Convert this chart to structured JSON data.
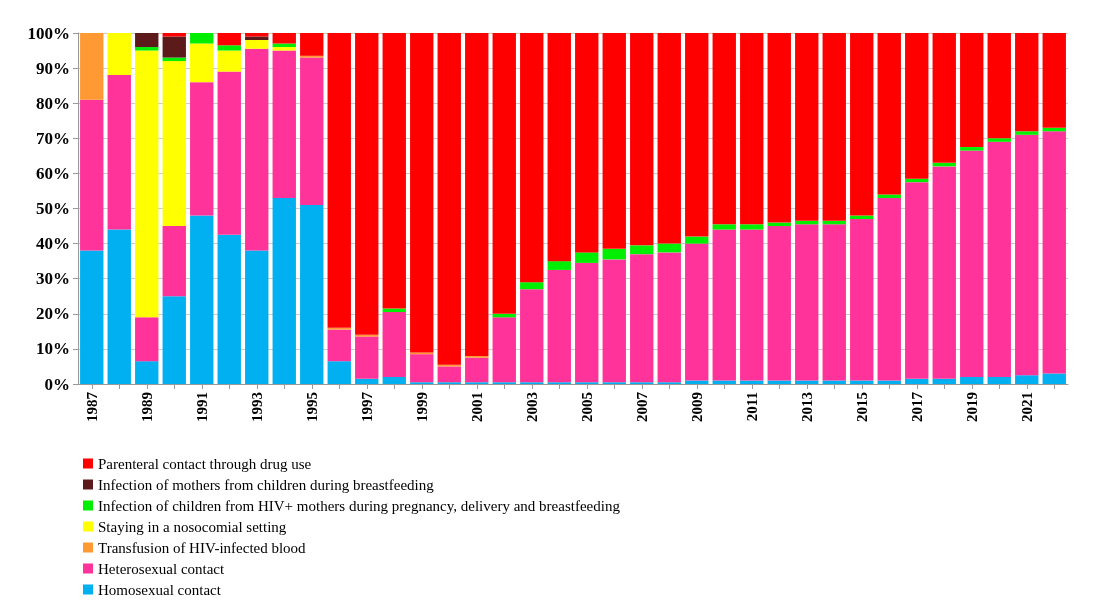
{
  "chart_data": {
    "type": "bar",
    "stacked": true,
    "categories": [
      "1987",
      null,
      "1989",
      null,
      "1991",
      null,
      "1993",
      null,
      "1995",
      null,
      "1997",
      null,
      "1999",
      null,
      "2001",
      null,
      "2003",
      null,
      "2005",
      null,
      "2007",
      null,
      "2009",
      null,
      "2011",
      null,
      "2013",
      null,
      "2015",
      null,
      "2017",
      null,
      "2019",
      null,
      "2021",
      null
    ],
    "series": [
      {
        "name": "Homosexual contact",
        "color": "#00b0f0",
        "values": [
          38,
          44,
          6.5,
          25,
          48,
          42.5,
          38,
          53,
          51,
          6.5,
          1.5,
          2,
          0.5,
          0.5,
          0.5,
          0.5,
          0.5,
          0.5,
          0.5,
          0.5,
          0.5,
          0.5,
          1,
          1,
          1,
          1,
          1,
          1,
          1,
          1,
          1.5,
          1.5,
          2,
          2,
          2.5,
          3
        ]
      },
      {
        "name": "Heterosexual contact",
        "color": "#ff3399",
        "values": [
          43,
          44,
          12.5,
          20,
          38,
          46.5,
          57.5,
          42,
          42,
          9,
          12,
          18.5,
          8,
          4.5,
          7,
          18.5,
          26.5,
          32,
          34,
          35,
          36.5,
          37,
          39,
          43,
          43,
          44,
          44.5,
          44.5,
          46,
          52,
          56,
          60.5,
          64.5,
          67,
          68.5,
          69
        ]
      },
      {
        "name": "Transfusion of HIV-infected blood",
        "color": "#ff9933",
        "values": [
          19,
          0,
          0,
          0,
          0,
          0,
          0,
          0,
          0.5,
          0.5,
          0.5,
          0,
          0.5,
          0.5,
          0.5,
          0,
          0,
          0,
          0,
          0,
          0,
          0,
          0,
          0,
          0,
          0,
          0,
          0,
          0,
          0,
          0,
          0,
          0,
          0,
          0,
          0
        ]
      },
      {
        "name": "Staying in a nosocomial setting",
        "color": "#ffff00",
        "values": [
          0,
          12,
          76,
          47,
          11,
          6,
          2.5,
          1,
          0,
          0,
          0,
          0,
          0,
          0,
          0,
          0,
          0,
          0,
          0,
          0,
          0,
          0,
          0,
          0,
          0,
          0,
          0,
          0,
          0,
          0,
          0,
          0,
          0,
          0,
          0,
          0
        ]
      },
      {
        "name": "Infection of children from HIV+ mothers during pregnancy, delivery and breastfeeding",
        "color": "#00ee00",
        "values": [
          0,
          0,
          1,
          1,
          3,
          1.5,
          0,
          1,
          0,
          0,
          0,
          1,
          0,
          0,
          0,
          1,
          2,
          2.5,
          3,
          3,
          2.5,
          2.5,
          2,
          1.5,
          1.5,
          1,
          1,
          1,
          1,
          1,
          1,
          1,
          1,
          1,
          1,
          1
        ]
      },
      {
        "name": "Infection of mothers from children during breastfeeding",
        "color": "#5c1a1a",
        "values": [
          0,
          0,
          4,
          6,
          0,
          0,
          1,
          0,
          0,
          0,
          0,
          0,
          0,
          0,
          0,
          0,
          0,
          0,
          0,
          0,
          0,
          0,
          0,
          0,
          0,
          0,
          0,
          0,
          0,
          0,
          0,
          0,
          0,
          0,
          0,
          0
        ]
      },
      {
        "name": "Parenteral contact through drug use",
        "color": "#ff0000",
        "values": [
          0,
          0,
          0,
          1,
          0,
          3.5,
          1,
          3,
          6.5,
          84,
          86,
          78.5,
          91,
          94.5,
          92,
          80,
          71,
          65,
          62.5,
          61.5,
          60.5,
          60,
          58,
          54.5,
          54.5,
          54,
          53.5,
          53.5,
          52,
          46,
          41.5,
          37,
          32.5,
          30,
          28,
          27
        ]
      }
    ],
    "ylim": [
      0,
      100
    ],
    "yticks": [
      {
        "value": 0,
        "label": "0%"
      },
      {
        "value": 10,
        "label": "10%"
      },
      {
        "value": 20,
        "label": "20%"
      },
      {
        "value": 30,
        "label": "30%"
      },
      {
        "value": 40,
        "label": "40%"
      },
      {
        "value": 50,
        "label": "50%"
      },
      {
        "value": 60,
        "label": "60%"
      },
      {
        "value": 70,
        "label": "70%"
      },
      {
        "value": 80,
        "label": "80%"
      },
      {
        "value": 90,
        "label": "90%"
      },
      {
        "value": 100,
        "label": "100%"
      }
    ],
    "grid": "y",
    "legend": "bottom left"
  }
}
